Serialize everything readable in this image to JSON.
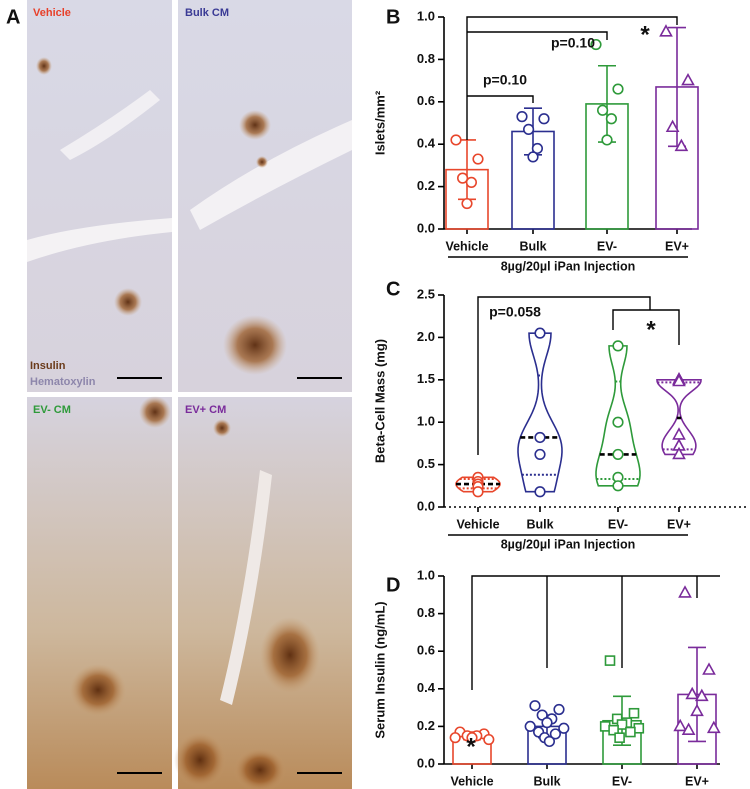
{
  "micrographs": {
    "panel_label": "A",
    "labels": [
      "Vehicle",
      "Bulk CM",
      "EV- CM",
      "EV+ CM"
    ],
    "stains": [
      "Insulin",
      "Hematoxylin"
    ]
  },
  "chart_data": [
    {
      "type": "bar",
      "panel_label": "B",
      "ylabel": "Islets/mm²",
      "xlabel": "8µg/20µl iPan Injection",
      "categories": [
        "Vehicle",
        "Bulk",
        "EV-",
        "EV+"
      ],
      "colors": [
        "#e8472c",
        "#2b2f8f",
        "#2e9a3a",
        "#7a2b9b"
      ],
      "markers": [
        "circle",
        "circle",
        "circle",
        "triangle"
      ],
      "values": [
        0.28,
        0.46,
        0.59,
        0.67
      ],
      "errors": [
        0.14,
        0.11,
        0.18,
        0.28
      ],
      "points": [
        [
          0.42,
          0.33,
          0.24,
          0.22,
          0.12
        ],
        [
          0.53,
          0.52,
          0.47,
          0.38,
          0.34
        ],
        [
          0.87,
          0.66,
          0.56,
          0.52,
          0.42
        ],
        [
          0.93,
          0.7,
          0.48,
          0.39
        ]
      ],
      "ylim": [
        0,
        1
      ],
      "yticks": [
        {
          "value": 0,
          "label": "0.0"
        },
        0.2,
        0.4,
        0.6,
        0.8,
        {
          "value": 1,
          "label": "1.0"
        }
      ],
      "annotations": [
        "p=0.10",
        "p=0.10",
        "*"
      ]
    },
    {
      "type": "violin",
      "panel_label": "C",
      "ylabel": "Beta-Cell Mass (mg)",
      "xlabel": "8µg/20µl iPan Injection",
      "categories": [
        "Vehicle",
        "Bulk",
        "EV-",
        "EV+"
      ],
      "colors": [
        "#e8472c",
        "#2b2f8f",
        "#2e9a3a",
        "#7a2b9b"
      ],
      "markers": [
        "circle",
        "circle",
        "circle",
        "triangle"
      ],
      "points": [
        [
          0.35,
          0.3,
          0.27,
          0.24,
          0.18
        ],
        [
          2.05,
          0.82,
          0.62,
          0.18
        ],
        [
          1.9,
          1.0,
          0.62,
          0.35,
          0.25
        ],
        [
          1.5,
          1.5,
          1.48,
          0.85,
          0.72,
          0.62
        ]
      ],
      "medians": [
        0.27,
        0.82,
        0.62,
        1.05
      ],
      "quartiles": [
        [
          0.22,
          0.33
        ],
        [
          0.38,
          1.55
        ],
        [
          0.33,
          1.48
        ],
        [
          0.68,
          1.47
        ]
      ],
      "ylim": [
        0,
        2.5
      ],
      "yticks": [
        {
          "value": 0,
          "label": "0.0"
        },
        0.5,
        {
          "value": 1,
          "label": "1.0"
        },
        1.5,
        {
          "value": 2,
          "label": "2.0"
        },
        2.5
      ],
      "annotations": [
        "p=0.058",
        "*"
      ]
    },
    {
      "type": "bar",
      "panel_label": "D",
      "ylabel": "Serum Insulin (ng/mL)",
      "categories": [
        "Vehicle",
        "Bulk",
        "EV-",
        "EV+"
      ],
      "colors": [
        "#e8472c",
        "#2b2f8f",
        "#2e9a3a",
        "#7a2b9b"
      ],
      "markers": [
        "circle",
        "circle",
        "square",
        "triangle"
      ],
      "values": [
        0.15,
        0.2,
        0.23,
        0.37
      ],
      "errors": [
        0.02,
        0.06,
        0.13,
        0.25
      ],
      "points": [
        [
          0.17,
          0.16,
          0.15,
          0.15,
          0.14,
          0.14,
          0.13
        ],
        [
          0.31,
          0.29,
          0.26,
          0.24,
          0.22,
          0.2,
          0.19,
          0.17,
          0.16,
          0.14,
          0.12
        ],
        [
          0.55,
          0.27,
          0.24,
          0.22,
          0.21,
          0.2,
          0.19,
          0.18,
          0.17,
          0.14
        ],
        [
          0.91,
          0.5,
          0.37,
          0.36,
          0.28,
          0.2,
          0.19,
          0.18
        ]
      ],
      "ylim": [
        0,
        1
      ],
      "yticks": [
        {
          "value": 0,
          "label": "0.0"
        },
        0.2,
        0.4,
        0.6,
        0.8,
        {
          "value": 1,
          "label": "1.0"
        }
      ],
      "annotations": [
        "*"
      ]
    }
  ]
}
